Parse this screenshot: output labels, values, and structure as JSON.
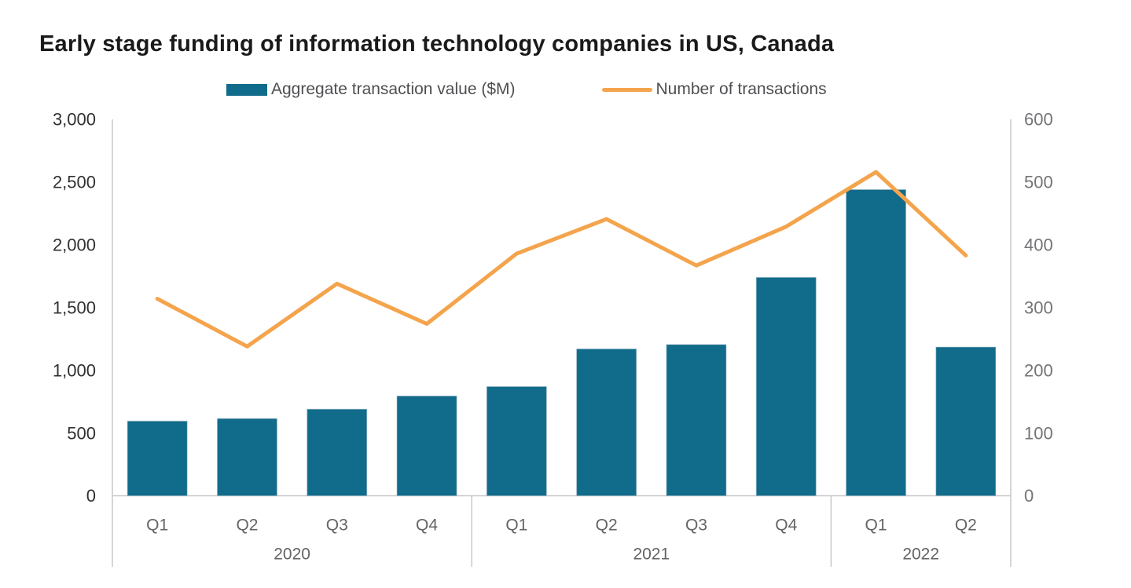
{
  "page": {
    "title": "Early stage funding of information technology companies in US, Canada"
  },
  "legend": {
    "items": [
      {
        "label": "Aggregate transaction value ($M)",
        "swatch": "bar-swatch",
        "color": "#116B8A"
      },
      {
        "label": "Number of transactions",
        "swatch": "line-swatch",
        "color": "#F4A44C"
      }
    ]
  },
  "chart_data": {
    "type": "combo bar + line, dual y-axes",
    "title": "Early stage funding of information technology companies in US, Canada",
    "categories": [
      "Q1",
      "Q2",
      "Q3",
      "Q4",
      "Q1",
      "Q2",
      "Q3",
      "Q4",
      "Q1",
      "Q2"
    ],
    "year_groups": [
      {
        "label": "2020",
        "span": 4
      },
      {
        "label": "2021",
        "span": 4
      },
      {
        "label": "2022",
        "span": 2
      }
    ],
    "series": [
      {
        "name": "Aggregate transaction value ($M)",
        "type": "bar",
        "axis": "left",
        "color": "#116B8A",
        "values": [
          595,
          615,
          690,
          795,
          870,
          1170,
          1205,
          1740,
          2440,
          1185
        ]
      },
      {
        "name": "Number of transactions",
        "type": "line",
        "axis": "right",
        "color": "#F4A44C",
        "values": [
          314,
          238,
          338,
          274,
          386,
          441,
          367,
          429,
          516,
          383
        ]
      }
    ],
    "left_axis": {
      "min": 0,
      "max": 3000,
      "tick_labels": [
        "3,000",
        "2,500",
        "2,000",
        "1,500",
        "1,000",
        "500",
        "0"
      ]
    },
    "right_axis": {
      "min": 0,
      "max": 600,
      "tick_labels": [
        "600",
        "500",
        "400",
        "300",
        "200",
        "100",
        "0"
      ]
    },
    "grid": false,
    "legend_position": "top-center"
  },
  "colors": {
    "axis_line": "#C8C8C8",
    "bar_edge": "#9BB4C3",
    "left_tick_text": "#303030",
    "right_tick_text": "#737477",
    "category_text": "#636466",
    "legend_text": "#4E4F52",
    "title_text": "#1A1A1A",
    "background": "#FFFFFF"
  }
}
